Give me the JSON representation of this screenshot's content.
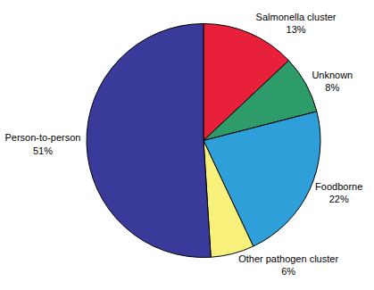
{
  "chart_data": {
    "type": "pie",
    "categories": [
      "Salmonella cluster",
      "Unknown",
      "Foodborne",
      "Other pathogen cluster",
      "Person-to-person"
    ],
    "values": [
      13,
      8,
      22,
      6,
      51
    ],
    "value_labels": [
      "13%",
      "8%",
      "22%",
      "6%",
      "51%"
    ],
    "colors": [
      "#e8203a",
      "#2e9b6a",
      "#2e9fd8",
      "#f7f07a",
      "#3a3a9a"
    ],
    "data_labels": true
  }
}
